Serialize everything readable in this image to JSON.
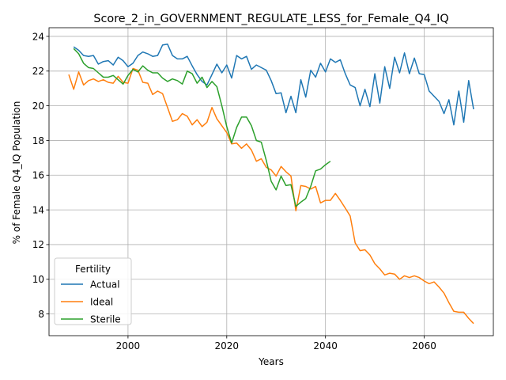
{
  "chart_data": {
    "type": "line",
    "title": "Score_2_in_GOVERNMENT_REGULATE_LESS_for_Female_Q4_IQ",
    "xlabel": "Years",
    "ylabel": "% of Female Q4_IQ Population",
    "xlim": [
      1984,
      2074
    ],
    "ylim": [
      6.75,
      24.5
    ],
    "xticks": [
      2000,
      2020,
      2040,
      2060
    ],
    "yticks": [
      8,
      10,
      12,
      14,
      16,
      18,
      20,
      22,
      24
    ],
    "grid": true,
    "legend": {
      "title": "Fertility",
      "placement": "lower-left",
      "entries": [
        "Actual",
        "Ideal",
        "Sterile"
      ]
    },
    "series": [
      {
        "name": "Actual",
        "color": "#1f77b4",
        "x": [
          1989,
          1990,
          1991,
          1992,
          1993,
          1994,
          1995,
          1996,
          1997,
          1998,
          1999,
          2000,
          2001,
          2002,
          2003,
          2004,
          2005,
          2006,
          2007,
          2008,
          2009,
          2010,
          2011,
          2012,
          2013,
          2014,
          2015,
          2016,
          2017,
          2018,
          2019,
          2020,
          2021,
          2022,
          2023,
          2024,
          2025,
          2026,
          2027,
          2028,
          2029,
          2030,
          2031,
          2032,
          2033,
          2034,
          2035,
          2036,
          2037,
          2038,
          2039,
          2040,
          2041,
          2042,
          2043,
          2044,
          2045,
          2046,
          2047,
          2048,
          2049,
          2050,
          2051,
          2052,
          2053,
          2054,
          2055,
          2056,
          2057,
          2058,
          2059,
          2060,
          2061,
          2062,
          2063,
          2064,
          2065,
          2066,
          2067,
          2068,
          2069,
          2070
        ],
        "y": [
          23.4,
          23.2,
          22.9,
          22.85,
          22.9,
          22.4,
          22.55,
          22.6,
          22.35,
          22.8,
          22.6,
          22.25,
          22.45,
          22.9,
          23.1,
          23.0,
          22.85,
          22.9,
          23.5,
          23.55,
          22.9,
          22.7,
          22.7,
          22.85,
          22.3,
          21.8,
          21.4,
          21.2,
          21.8,
          22.4,
          21.9,
          22.35,
          21.6,
          22.9,
          22.7,
          22.85,
          22.1,
          22.35,
          22.2,
          22.05,
          21.45,
          20.7,
          20.75,
          19.6,
          20.55,
          19.6,
          21.5,
          20.5,
          22.05,
          21.65,
          22.45,
          21.95,
          22.7,
          22.5,
          22.65,
          21.85,
          21.2,
          21.05,
          20.0,
          20.95,
          19.95,
          21.85,
          20.15,
          22.25,
          21.0,
          22.8,
          21.9,
          23.05,
          21.85,
          22.75,
          21.85,
          21.8,
          20.85,
          20.55,
          20.25,
          19.55,
          20.35,
          18.9,
          20.85,
          19.05,
          21.45,
          19.8
        ]
      },
      {
        "name": "Ideal",
        "color": "#ff7f0e",
        "x": [
          1988,
          1989,
          1990,
          1991,
          1992,
          1993,
          1994,
          1995,
          1996,
          1997,
          1998,
          1999,
          2000,
          2001,
          2002,
          2003,
          2004,
          2005,
          2006,
          2007,
          2008,
          2009,
          2010,
          2011,
          2012,
          2013,
          2014,
          2015,
          2016,
          2017,
          2018,
          2019,
          2020,
          2021,
          2022,
          2023,
          2024,
          2025,
          2026,
          2027,
          2028,
          2029,
          2030,
          2031,
          2032,
          2033,
          2034,
          2035,
          2036,
          2037,
          2038,
          2039,
          2040,
          2041,
          2042,
          2043,
          2044,
          2045,
          2046,
          2047,
          2048,
          2049,
          2050,
          2051,
          2052,
          2053,
          2054,
          2055,
          2056,
          2057,
          2058,
          2059,
          2060,
          2061,
          2062,
          2063,
          2064,
          2065,
          2066,
          2067,
          2068,
          2069,
          2070
        ],
        "y": [
          21.8,
          20.95,
          21.95,
          21.2,
          21.45,
          21.55,
          21.4,
          21.5,
          21.35,
          21.3,
          21.7,
          21.35,
          21.3,
          22.15,
          22.05,
          21.35,
          21.3,
          20.65,
          20.85,
          20.7,
          19.9,
          19.1,
          19.2,
          19.55,
          19.4,
          18.9,
          19.2,
          18.8,
          19.05,
          19.9,
          19.25,
          18.85,
          18.45,
          17.8,
          17.85,
          17.55,
          17.8,
          17.45,
          16.8,
          16.95,
          16.45,
          16.3,
          15.95,
          16.5,
          16.2,
          15.95,
          13.95,
          15.4,
          15.35,
          15.2,
          15.35,
          14.4,
          14.55,
          14.55,
          14.95,
          14.55,
          14.1,
          13.65,
          12.1,
          11.65,
          11.7,
          11.4,
          10.9,
          10.6,
          10.25,
          10.35,
          10.3,
          10.0,
          10.2,
          10.1,
          10.2,
          10.1,
          9.9,
          9.75,
          9.85,
          9.55,
          9.2,
          8.65,
          8.15,
          8.1,
          8.1,
          7.75,
          7.45
        ]
      },
      {
        "name": "Sterile",
        "color": "#2ca02c",
        "x": [
          1989,
          1990,
          1991,
          1992,
          1993,
          1994,
          1995,
          1996,
          1997,
          1998,
          1999,
          2000,
          2001,
          2002,
          2003,
          2004,
          2005,
          2006,
          2007,
          2008,
          2009,
          2010,
          2011,
          2012,
          2013,
          2014,
          2015,
          2016,
          2017,
          2018,
          2019,
          2020,
          2021,
          2022,
          2023,
          2024,
          2025,
          2026,
          2027,
          2028,
          2029,
          2030,
          2031,
          2032,
          2033,
          2034,
          2035,
          2036,
          2037,
          2038,
          2039,
          2040,
          2041
        ],
        "y": [
          23.3,
          23.0,
          22.45,
          22.2,
          22.15,
          21.9,
          21.65,
          21.65,
          21.75,
          21.5,
          21.25,
          21.75,
          22.1,
          21.95,
          22.3,
          22.05,
          21.9,
          21.9,
          21.6,
          21.4,
          21.55,
          21.45,
          21.25,
          22.0,
          21.85,
          21.3,
          21.65,
          21.05,
          21.4,
          21.1,
          20.0,
          18.8,
          17.85,
          18.75,
          19.35,
          19.35,
          18.85,
          18.0,
          17.9,
          16.85,
          15.65,
          15.15,
          15.95,
          15.4,
          15.45,
          14.2,
          14.45,
          14.65,
          15.35,
          16.25,
          16.35,
          16.6,
          16.8
        ]
      }
    ]
  }
}
